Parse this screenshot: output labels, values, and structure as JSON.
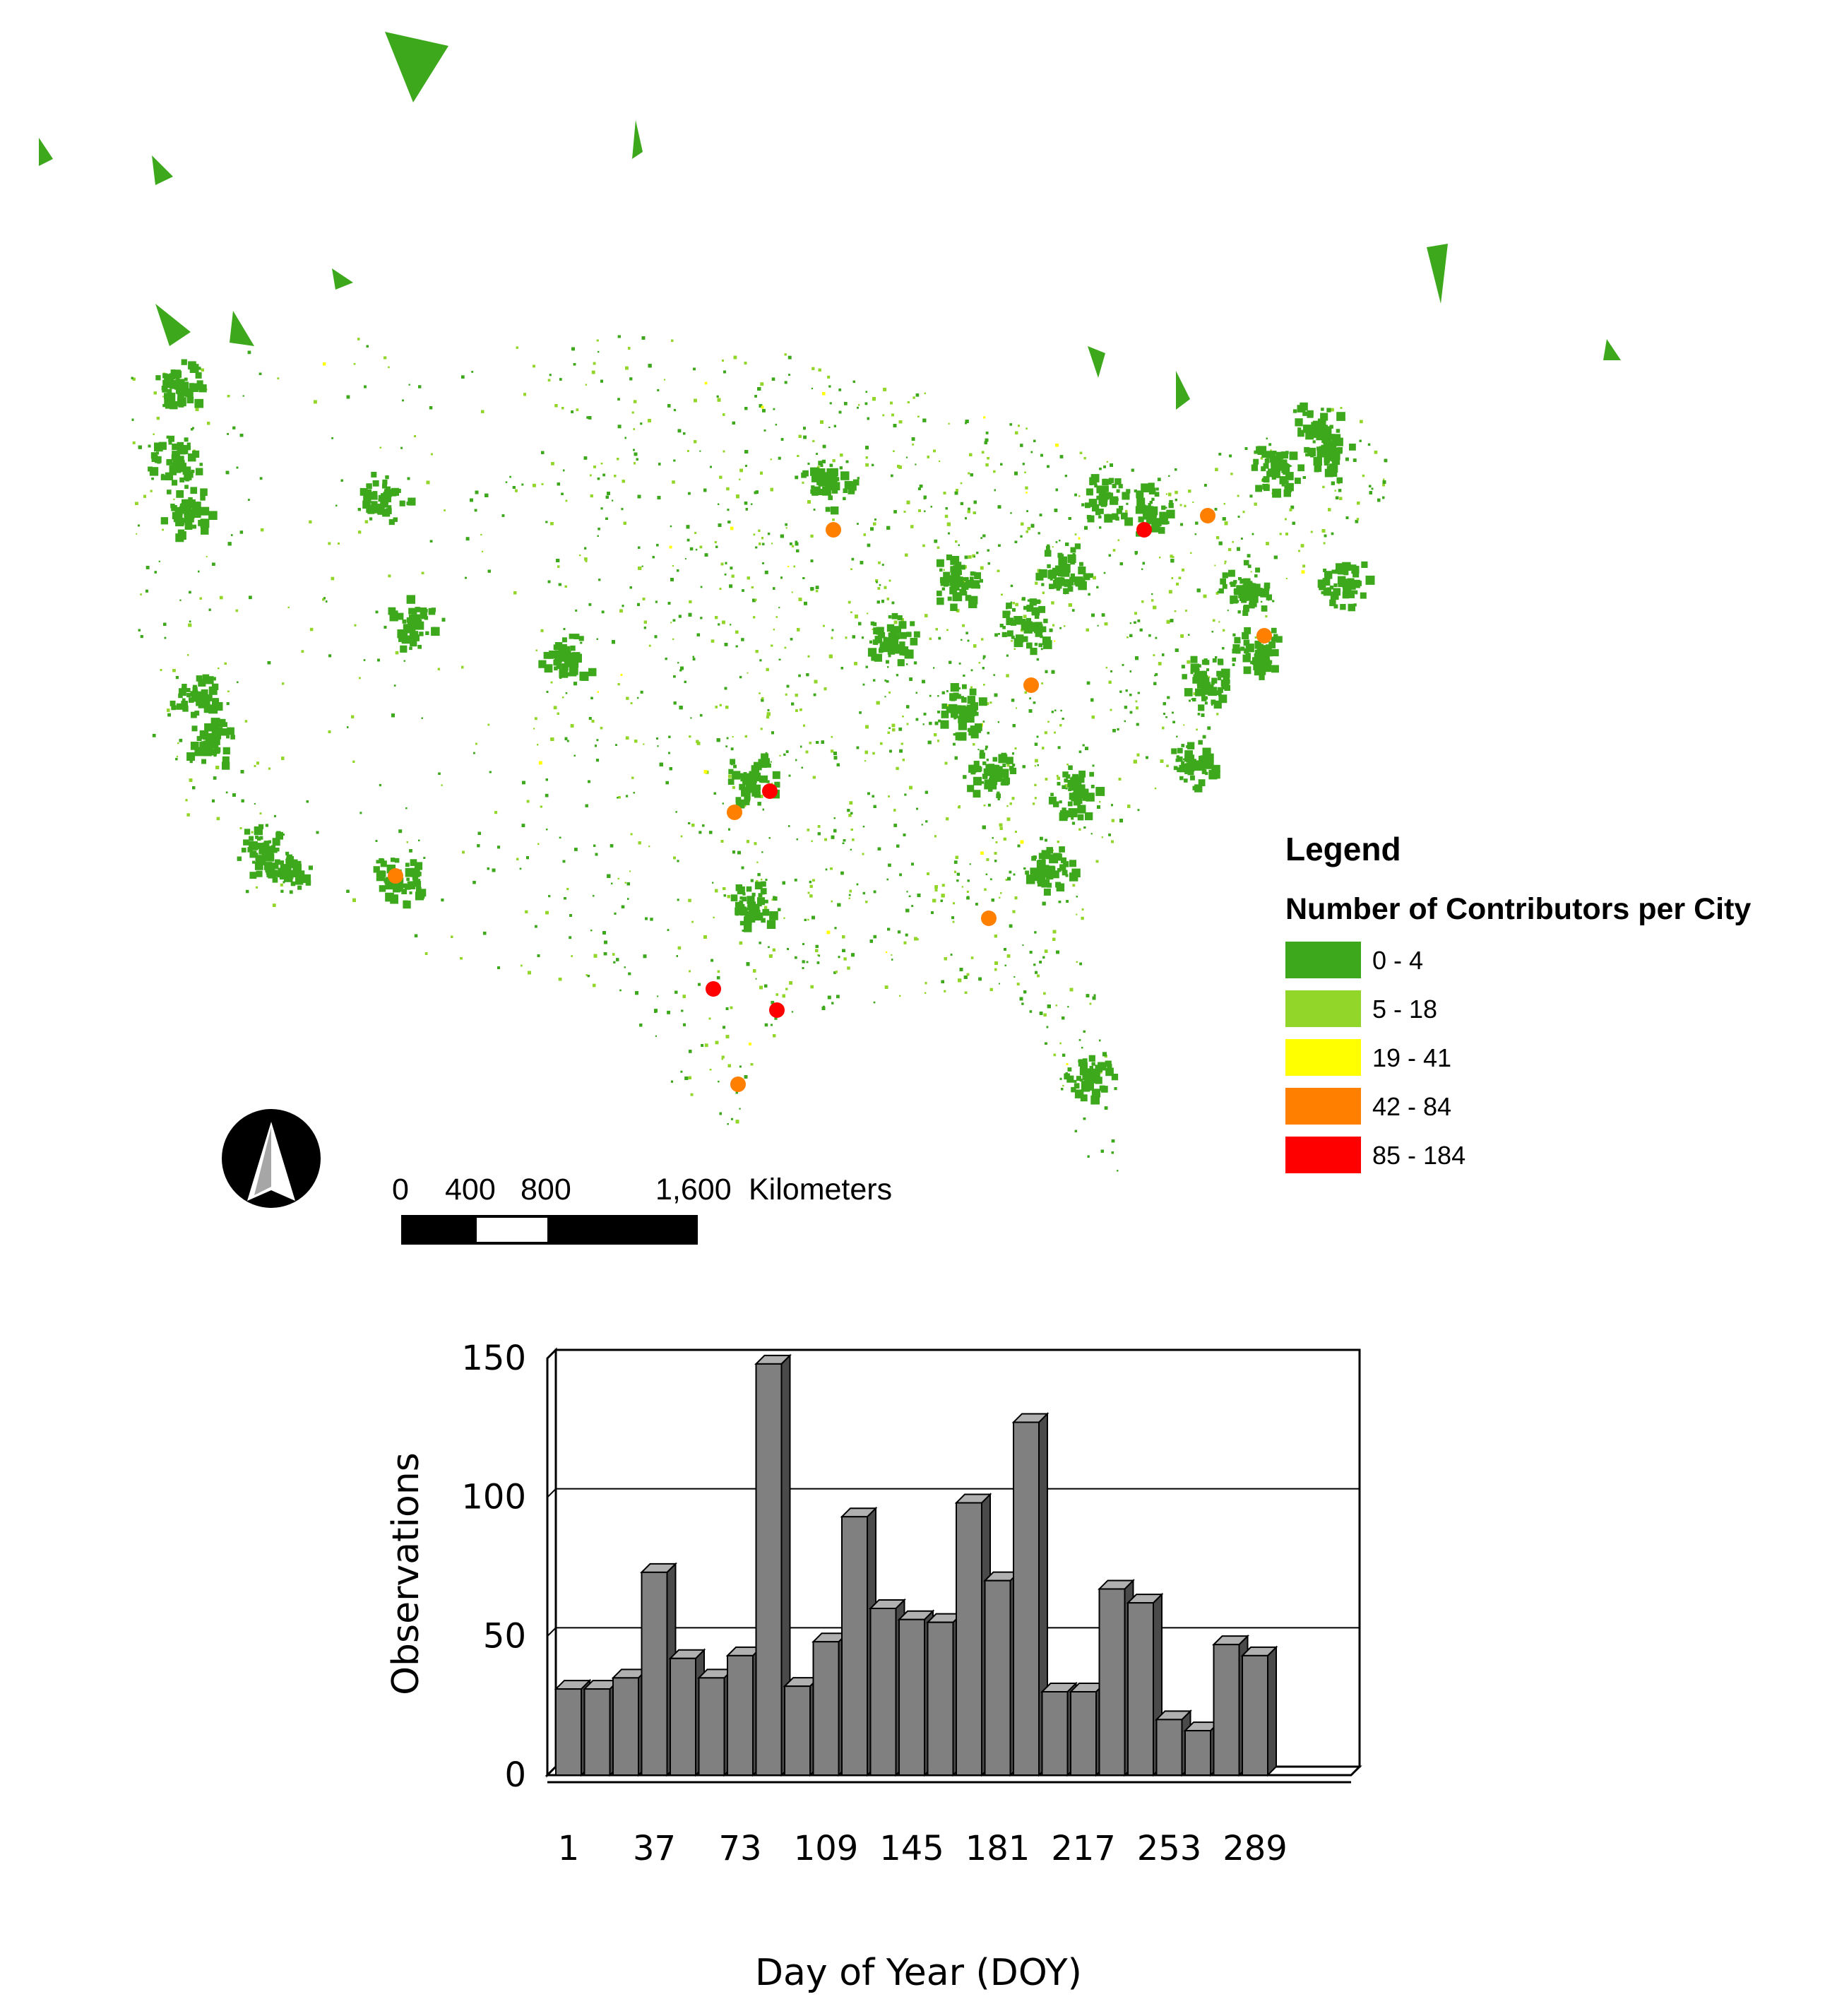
{
  "map": {
    "legend_heading": "Legend",
    "legend_subtitle": "Number of Contributors per City",
    "legend_items": [
      {
        "label": "0 - 4",
        "color": "#3da81c"
      },
      {
        "label": "5 - 18",
        "color": "#92d62a"
      },
      {
        "label": "19 - 41",
        "color": "#ffff00"
      },
      {
        "label": "42 - 84",
        "color": "#ff7f00"
      },
      {
        "label": "85 - 184",
        "color": "#ff0000"
      }
    ],
    "scale_bar": {
      "ticks": [
        "0",
        "400",
        "800",
        "1,600"
      ],
      "unit": "Kilometers"
    },
    "north_arrow_icon": "north-arrow-icon"
  },
  "chart_data": {
    "type": "bar",
    "ylabel": "Observations",
    "xlabel": "Day of Year (DOY)",
    "ylim": [
      0,
      150
    ],
    "yticks": [
      0,
      50,
      100,
      150
    ],
    "xtick_labels": [
      "1",
      "37",
      "73",
      "109",
      "145",
      "181",
      "217",
      "253",
      "289"
    ],
    "bar_color": "#808080",
    "grid": true,
    "values": [
      31,
      31,
      35,
      73,
      42,
      35,
      43,
      148,
      32,
      48,
      93,
      60,
      56,
      55,
      98,
      70,
      127,
      30,
      30,
      67,
      62,
      20,
      16,
      47,
      43
    ]
  }
}
